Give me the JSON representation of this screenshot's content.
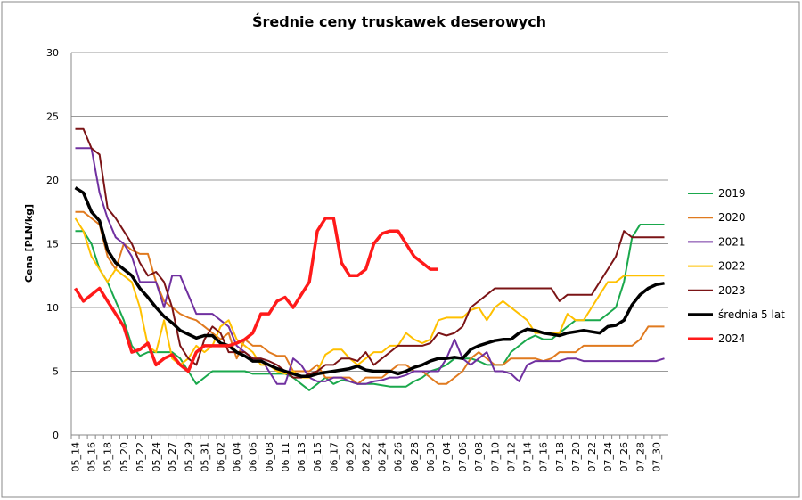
{
  "chart_data": {
    "type": "line",
    "title": "Średnie ceny truskawek deserowych",
    "y_label": "Cena [PLN/kg]",
    "categories": [
      "05_14",
      null,
      "05_16",
      null,
      "05_18",
      null,
      "05_20",
      null,
      "05_22",
      null,
      "05_24",
      null,
      "05_27",
      null,
      "05_29",
      null,
      "05_31",
      null,
      "06_02",
      null,
      "06_04",
      null,
      "06_06",
      null,
      "06_08",
      null,
      "06_11",
      null,
      "06_13",
      null,
      "06_15",
      null,
      "06_17",
      null,
      "06_20",
      null,
      "06_22",
      null,
      "06_24",
      null,
      "06_26",
      null,
      "06_28",
      null,
      "06_30",
      null,
      "07_04",
      null,
      "07_06",
      null,
      "07_08",
      null,
      "07_10",
      null,
      "07_12",
      null,
      "07_14",
      null,
      "07_16",
      null,
      "07_18",
      null,
      "07_20",
      null,
      "07_22",
      null,
      "07_24",
      null,
      "07_26",
      null,
      "07_28",
      null,
      "07_30",
      null
    ],
    "series": [
      {
        "name": "2019",
        "color": "#1aa84c",
        "values": [
          16,
          16,
          15,
          13,
          12,
          10.5,
          9,
          7,
          6.2,
          6.5,
          6.5,
          6.5,
          6.5,
          6,
          5,
          4,
          4.5,
          5,
          5,
          5,
          5,
          5,
          4.8,
          4.8,
          4.8,
          4.8,
          4.8,
          4.5,
          4,
          3.5,
          4,
          4.5,
          4,
          4.3,
          4.2,
          4,
          4,
          4,
          3.9,
          3.8,
          3.8,
          3.8,
          4.2,
          4.5,
          5,
          5.2,
          5.5,
          6,
          6,
          6,
          5.8,
          5.5,
          5.5,
          5.5,
          6.5,
          7,
          7.5,
          7.8,
          7.5,
          7.5,
          8,
          8.5,
          9,
          9,
          9,
          9,
          9.5,
          10,
          12,
          15.5,
          16.5,
          16.5,
          16.5,
          16.5
        ]
      },
      {
        "name": "2020",
        "color": "#e07a1f",
        "values": [
          17.5,
          17.5,
          17,
          16.5,
          14,
          13,
          15,
          14.5,
          14.2,
          14.2,
          12,
          10.5,
          10,
          9.5,
          9.2,
          9,
          8.5,
          8,
          7.5,
          8,
          6,
          7.5,
          7,
          7,
          6.5,
          6.2,
          6.2,
          5,
          5,
          5,
          5.5,
          4.5,
          4.5,
          4.5,
          4.5,
          4,
          4.5,
          4.5,
          4.5,
          5,
          5.5,
          5.5,
          5,
          5,
          4.5,
          4,
          4,
          4.5,
          5,
          6,
          6.5,
          6,
          5.5,
          5.5,
          6,
          6,
          6,
          6,
          5.8,
          6,
          6.5,
          6.5,
          6.5,
          7,
          7,
          7,
          7,
          7,
          7,
          7,
          7.5,
          8.5,
          8.5,
          8.5
        ]
      },
      {
        "name": "2021",
        "color": "#7030a0",
        "values": [
          22.5,
          22.5,
          22.5,
          19,
          17,
          15.5,
          15,
          14,
          12,
          12,
          12,
          10,
          12.5,
          12.5,
          11,
          9.5,
          9.5,
          9.5,
          9,
          8.5,
          7,
          6.5,
          6,
          6,
          5,
          4,
          4,
          6,
          5.5,
          4.5,
          4.2,
          4.2,
          4.5,
          4.5,
          4.2,
          4,
          4,
          4.2,
          4.3,
          4.5,
          4.5,
          4.7,
          5,
          5,
          5,
          5,
          6,
          7.5,
          6,
          5.5,
          6,
          6.5,
          5,
          5,
          4.8,
          4.2,
          5.5,
          5.8,
          5.8,
          5.8,
          5.8,
          6,
          6,
          5.8,
          5.8,
          5.8,
          5.8,
          5.8,
          5.8,
          5.8,
          5.8,
          5.8,
          5.8,
          6
        ]
      },
      {
        "name": "2022",
        "color": "#ffc000",
        "values": [
          17,
          16,
          14,
          13,
          12,
          13,
          12.5,
          12,
          10,
          7,
          6.5,
          9,
          6,
          5.5,
          6,
          7,
          6.5,
          7,
          8.5,
          9,
          7.5,
          7,
          6.5,
          5.5,
          5.5,
          5,
          4.8,
          5,
          4.5,
          4.5,
          5,
          6.3,
          6.7,
          6.7,
          6,
          5.5,
          6,
          6.5,
          6.5,
          7,
          7,
          8,
          7.5,
          7.2,
          7.5,
          9,
          9.2,
          9.2,
          9.2,
          9.8,
          10,
          9,
          10,
          10.5,
          10,
          9.5,
          9,
          8,
          8,
          8,
          8,
          9.5,
          9,
          9,
          10,
          11,
          12,
          12,
          12.5,
          12.5,
          12.5,
          12.5,
          12.5,
          12.5
        ]
      },
      {
        "name": "2023",
        "color": "#7b1416",
        "values": [
          24,
          24,
          22.5,
          22,
          17.8,
          17,
          16,
          15,
          13.5,
          12.5,
          12.8,
          12,
          10,
          7,
          6,
          5.5,
          7.5,
          8.5,
          8,
          6.5,
          6.5,
          6.5,
          6,
          6,
          5.8,
          5.5,
          5,
          4.5,
          4.5,
          4.8,
          5,
          5.5,
          5.5,
          6,
          6,
          5.8,
          6.5,
          5.5,
          6,
          6.5,
          7,
          7,
          7,
          7,
          7.2,
          8,
          7.8,
          8,
          8.5,
          10,
          10.5,
          11,
          11.5,
          11.5,
          11.5,
          11.5,
          11.5,
          11.5,
          11.5,
          11.5,
          10.5,
          11,
          11,
          11,
          11,
          12,
          13,
          14,
          16,
          15.5,
          15.5,
          15.5,
          15.5,
          15.5
        ]
      },
      {
        "name": "średnia 5 lat",
        "color": "#000000",
        "values": [
          19.4,
          19,
          17.5,
          16.8,
          14.5,
          13.5,
          13,
          12.5,
          11.5,
          10.8,
          10,
          9.3,
          8.8,
          8.2,
          7.9,
          7.6,
          7.8,
          7.8,
          7.2,
          7,
          6.5,
          6.2,
          5.8,
          5.8,
          5.5,
          5.2,
          5,
          4.8,
          4.6,
          4.6,
          4.8,
          4.9,
          5,
          5.1,
          5.2,
          5.4,
          5.1,
          5,
          5,
          5,
          4.8,
          5,
          5.3,
          5.5,
          5.8,
          6,
          6,
          6.1,
          6,
          6.7,
          7,
          7.2,
          7.4,
          7.5,
          7.5,
          8,
          8.3,
          8.2,
          8,
          7.9,
          7.8,
          8,
          8.1,
          8.2,
          8.1,
          8,
          8.5,
          8.6,
          9,
          10.2,
          11,
          11.5,
          11.8,
          11.9
        ]
      },
      {
        "name": "2024",
        "color": "#ff1a1a",
        "values": [
          11.5,
          10.5,
          11,
          11.5,
          10.5,
          9.5,
          8.5,
          6.5,
          6.7,
          7.2,
          5.5,
          6,
          6.3,
          5.5,
          5,
          6.5,
          7,
          7,
          7,
          7,
          7.2,
          7.5,
          8,
          9.5,
          9.5,
          10.5,
          10.8,
          10,
          11,
          12,
          16,
          17,
          17,
          13.5,
          12.5,
          12.5,
          13,
          15,
          15.8,
          16,
          16,
          15,
          14,
          13.5,
          13,
          13,
          null,
          null,
          null,
          null,
          null,
          null,
          null,
          null,
          null,
          null,
          null,
          null,
          null,
          null,
          null,
          null,
          null,
          null,
          null,
          null,
          null,
          null,
          null,
          null,
          null,
          null,
          null,
          null
        ]
      }
    ],
    "ylim": [
      0,
      30
    ],
    "yticks": [
      0,
      5,
      10,
      15,
      20,
      25,
      30
    ],
    "grid": true,
    "legend": "right"
  }
}
